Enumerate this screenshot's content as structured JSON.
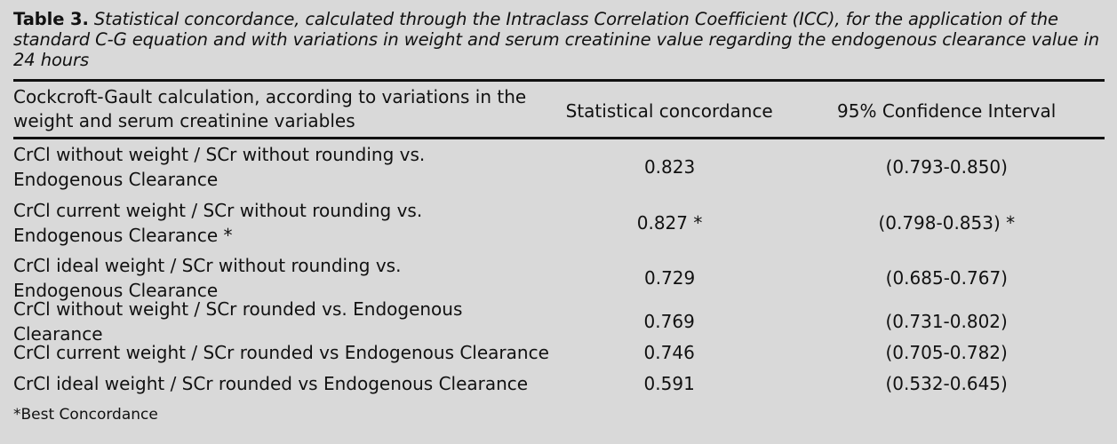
{
  "caption": {
    "label": "Table 3.",
    "text": "Statistical concordance, calculated through the Intraclass Correlation Coefficient (ICC), for the application of the standard C-G equation and with variations in weight and serum creatinine value regarding the endogenous clearance value in 24 hours"
  },
  "columns": [
    "Cockcroft-Gault calculation, according to variations in the weight and serum creatinine variables",
    "Statistical concordance",
    "95% Confidence Interval"
  ],
  "rows": [
    {
      "calculation": "CrCl without weight / SCr without rounding vs. Endogenous Clearance",
      "concordance": "0.823",
      "ci": "(0.793-0.850)"
    },
    {
      "calculation": "CrCl current weight / SCr without rounding vs. Endogenous Clearance *",
      "concordance": "0.827 *",
      "ci": "(0.798-0.853) *"
    },
    {
      "calculation": "CrCl ideal weight / SCr without rounding vs. Endogenous Clearance",
      "concordance": "0.729",
      "ci": "(0.685-0.767)"
    },
    {
      "calculation": "CrCl without weight / SCr rounded vs. Endogenous Clearance",
      "concordance": "0.769",
      "ci": "(0.731-0.802)"
    },
    {
      "calculation": "CrCl current weight / SCr rounded vs Endogenous Clearance",
      "concordance": "0.746",
      "ci": "(0.705-0.782)"
    },
    {
      "calculation": "CrCl ideal weight / SCr rounded vs Endogenous Clearance",
      "concordance": "0.591",
      "ci": "(0.532-0.645)"
    }
  ],
  "footnote": "*Best Concordance"
}
